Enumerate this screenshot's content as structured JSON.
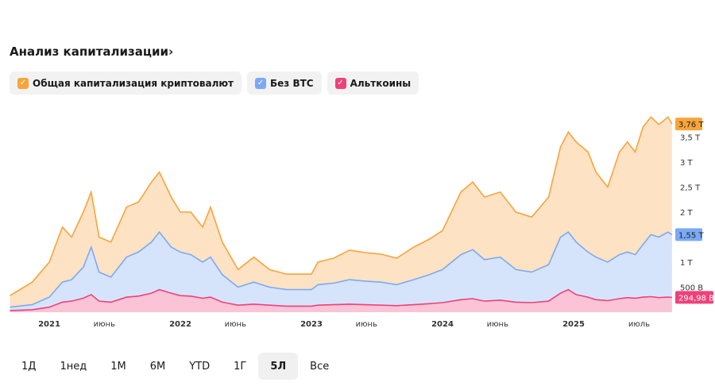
{
  "title": "Анализ капитализации›",
  "legend": [
    {
      "label": "Общая капитализация криптовалют",
      "color": "#f8a43a"
    },
    {
      "label": "Без BTC",
      "color": "#7aaaf5"
    },
    {
      "label": "Альткоины",
      "color": "#f0407a"
    }
  ],
  "ranges": [
    "1Д",
    "1нед",
    "1М",
    "6М",
    "YTD",
    "1Г",
    "5Л",
    "Все"
  ],
  "active_range": "5Л",
  "chart_data": {
    "type": "area",
    "x_unit": "decimal year",
    "x": [
      2020.7,
      2020.87,
      2021.0,
      2021.1,
      2021.17,
      2021.26,
      2021.32,
      2021.38,
      2021.47,
      2021.59,
      2021.68,
      2021.78,
      2021.84,
      2021.93,
      2022.0,
      2022.08,
      2022.17,
      2022.23,
      2022.32,
      2022.44,
      2022.56,
      2022.68,
      2022.81,
      2023.0,
      2023.05,
      2023.17,
      2023.29,
      2023.41,
      2023.53,
      2023.65,
      2023.78,
      2023.9,
      2024.0,
      2024.14,
      2024.23,
      2024.32,
      2024.44,
      2024.56,
      2024.68,
      2024.81,
      2024.9,
      2024.96,
      2025.02,
      2025.11,
      2025.17,
      2025.26,
      2025.35,
      2025.41,
      2025.47,
      2025.53,
      2025.59,
      2025.65,
      2025.72,
      2025.75
    ],
    "series": [
      {
        "name": "Общая капитализация криптовалют",
        "unit": "T",
        "last_label": "3,76 T",
        "values": [
          0.33,
          0.6,
          1.0,
          1.7,
          1.5,
          2.0,
          2.4,
          1.5,
          1.4,
          2.1,
          2.2,
          2.6,
          2.8,
          2.3,
          2.0,
          2.0,
          1.7,
          2.1,
          1.4,
          0.85,
          1.1,
          0.85,
          0.76,
          0.76,
          1.0,
          1.08,
          1.24,
          1.19,
          1.16,
          1.08,
          1.3,
          1.46,
          1.63,
          2.4,
          2.6,
          2.3,
          2.4,
          2.0,
          1.9,
          2.3,
          3.3,
          3.6,
          3.4,
          3.2,
          2.8,
          2.5,
          3.2,
          3.4,
          3.2,
          3.7,
          3.9,
          3.75,
          3.9,
          3.76
        ]
      },
      {
        "name": "Без BTC",
        "unit": "T",
        "last_label": "1,55 T",
        "values": [
          0.1,
          0.15,
          0.3,
          0.6,
          0.65,
          0.9,
          1.3,
          0.8,
          0.7,
          1.1,
          1.2,
          1.4,
          1.6,
          1.3,
          1.2,
          1.15,
          1.0,
          1.1,
          0.75,
          0.5,
          0.6,
          0.5,
          0.45,
          0.45,
          0.55,
          0.58,
          0.65,
          0.62,
          0.6,
          0.55,
          0.65,
          0.75,
          0.85,
          1.15,
          1.25,
          1.05,
          1.1,
          0.85,
          0.8,
          0.95,
          1.5,
          1.6,
          1.4,
          1.2,
          1.1,
          1.0,
          1.15,
          1.2,
          1.15,
          1.35,
          1.55,
          1.5,
          1.6,
          1.55
        ]
      },
      {
        "name": "Альткоины",
        "unit": "T",
        "last_label": "294,98 B",
        "values": [
          0.03,
          0.05,
          0.1,
          0.2,
          0.22,
          0.28,
          0.35,
          0.22,
          0.2,
          0.3,
          0.32,
          0.38,
          0.45,
          0.38,
          0.33,
          0.32,
          0.28,
          0.3,
          0.2,
          0.14,
          0.16,
          0.14,
          0.12,
          0.12,
          0.14,
          0.15,
          0.16,
          0.15,
          0.14,
          0.13,
          0.15,
          0.17,
          0.19,
          0.25,
          0.27,
          0.22,
          0.24,
          0.2,
          0.19,
          0.22,
          0.38,
          0.45,
          0.35,
          0.3,
          0.25,
          0.23,
          0.27,
          0.29,
          0.28,
          0.3,
          0.31,
          0.29,
          0.3,
          0.295
        ]
      }
    ],
    "y_ticks": [
      {
        "v": 0.5,
        "label": "500 B"
      },
      {
        "v": 1,
        "label": "1 T"
      },
      {
        "v": 2,
        "label": "2 T"
      },
      {
        "v": 2.5,
        "label": "2,5 T"
      },
      {
        "v": 3,
        "label": "3 T"
      },
      {
        "v": 3.5,
        "label": "3,5 T"
      }
    ],
    "x_ticks": [
      {
        "t": 2021.0,
        "label": "2021"
      },
      {
        "t": 2021.42,
        "label": "июнь"
      },
      {
        "t": 2022.0,
        "label": "2022"
      },
      {
        "t": 2022.42,
        "label": "июнь"
      },
      {
        "t": 2023.0,
        "label": "2023"
      },
      {
        "t": 2023.42,
        "label": "июнь"
      },
      {
        "t": 2024.0,
        "label": "2024"
      },
      {
        "t": 2024.42,
        "label": "июнь"
      },
      {
        "t": 2025.0,
        "label": "2025"
      },
      {
        "t": 2025.5,
        "label": "июль"
      }
    ],
    "ylim": [
      0,
      4
    ]
  }
}
